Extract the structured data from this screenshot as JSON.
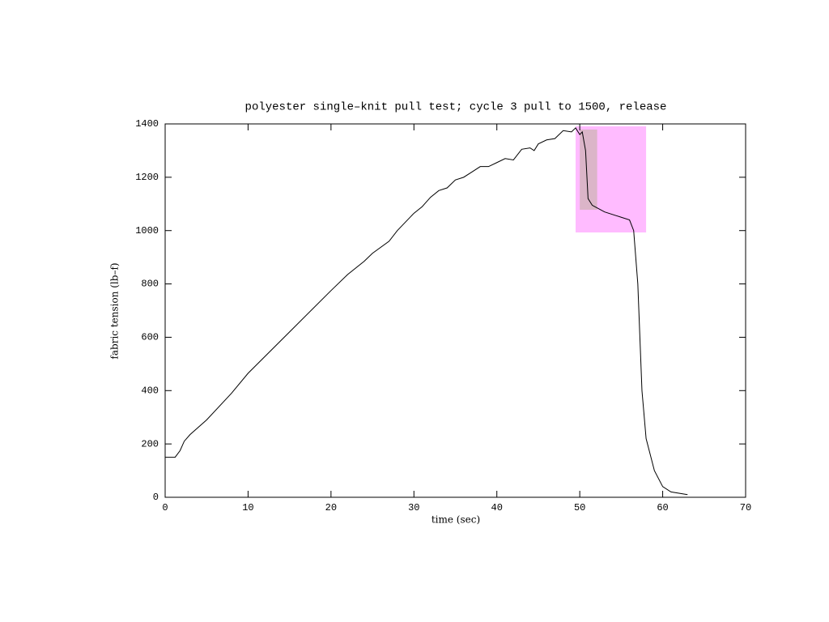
{
  "chart_data": {
    "type": "line",
    "title": "polyester single–knit pull test; cycle 3 pull to 1500, release",
    "x_label": "time (sec)",
    "y_label": "fabric tension (lb–f)",
    "xlim": [
      0,
      70
    ],
    "ylim": [
      0,
      1400
    ],
    "xticks": [
      0,
      10,
      20,
      30,
      40,
      50,
      60,
      70
    ],
    "yticks": [
      0,
      200,
      400,
      600,
      800,
      1000,
      1200,
      1400
    ],
    "x": [
      0,
      1.2,
      1.8,
      2.3,
      3,
      5,
      8,
      10,
      15,
      20,
      22,
      24,
      25,
      27,
      28,
      30,
      31,
      32,
      33,
      34,
      35,
      36,
      37,
      38,
      39,
      40,
      41,
      42,
      43,
      44,
      44.5,
      45,
      46,
      47,
      48,
      49,
      49.5,
      50,
      50.3,
      50.7,
      51,
      51.5,
      53,
      55,
      56,
      56.5,
      57,
      57.5,
      58,
      59,
      60,
      61,
      63
    ],
    "series": [
      {
        "color": "#000000",
        "values": [
          150,
          150,
          175,
          210,
          235,
          290,
          390,
          465,
          620,
          775,
          835,
          885,
          915,
          960,
          1000,
          1065,
          1090,
          1125,
          1150,
          1160,
          1190,
          1200,
          1220,
          1240,
          1240,
          1255,
          1270,
          1265,
          1305,
          1310,
          1300,
          1325,
          1340,
          1345,
          1375,
          1370,
          1385,
          1360,
          1370,
          1300,
          1120,
          1095,
          1070,
          1050,
          1040,
          1000,
          800,
          400,
          220,
          100,
          40,
          20,
          10
        ]
      }
    ],
    "highlights": [
      {
        "xlim": [
          49.5,
          58.0
        ],
        "ylim": [
          993,
          1391
        ],
        "color": "#ffbbff"
      },
      {
        "xlim": [
          50.0,
          52.1
        ],
        "ylim": [
          1078,
          1379
        ],
        "color": "#dbb5c8"
      }
    ]
  }
}
